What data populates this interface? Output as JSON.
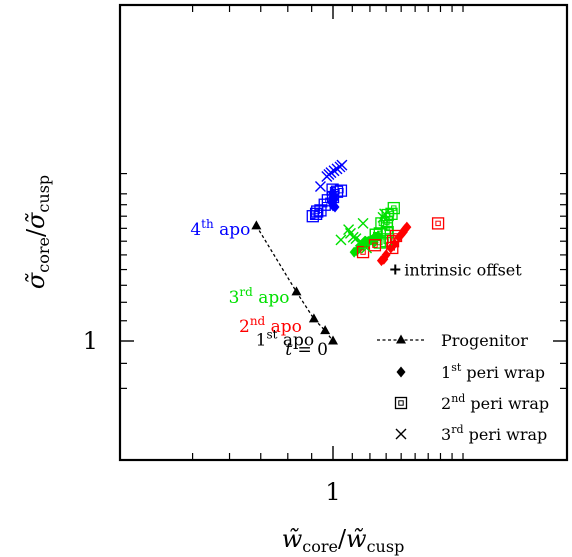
{
  "colors": {
    "progenitor": "#000000",
    "apo_1": "#000000",
    "apo_2": "#ff0000",
    "apo_3": "#00e000",
    "apo_4": "#0000ff",
    "peri_1": "#0000ff",
    "peri_2": "#ff0000",
    "peri_3": "#00e000",
    "axis": "#000000"
  },
  "chart_data": {
    "type": "scatter",
    "xscale": "log",
    "yscale": "log",
    "xlim": [
      0.5,
      1.9
    ],
    "ylim": [
      0.78,
      2.25
    ],
    "xlabel": "w̃core/w̃cusp",
    "ylabel": "σ̃core/σ̃cusp",
    "x_ticklabels": [
      {
        "value": 1,
        "label": "1"
      }
    ],
    "y_ticklabels": [
      {
        "value": 1,
        "label": "1"
      }
    ],
    "legend": {
      "placement": "bottom-right",
      "entries": [
        {
          "key": "progenitor",
          "label": "Progenitor"
        },
        {
          "key": "peri_1",
          "ord": "1",
          "sup": "st",
          "rest": " peri wrap"
        },
        {
          "key": "peri_2",
          "ord": "2",
          "sup": "nd",
          "rest": " peri wrap"
        },
        {
          "key": "peri_3",
          "ord": "3",
          "sup": "rd",
          "rest": " peri wrap"
        }
      ]
    },
    "progenitor": {
      "style": "dashed line with triangles",
      "points": [
        {
          "x": 0.685,
          "y": 1.72
        },
        {
          "x": 0.835,
          "y": 1.26
        },
        {
          "x": 0.91,
          "y": 1.11
        },
        {
          "x": 0.962,
          "y": 1.05
        },
        {
          "x": 1.0,
          "y": 1.0
        }
      ],
      "annotations": [
        {
          "key": "apo_4",
          "ord": "4",
          "sup": "th",
          "rest": " apo",
          "x": 0.685,
          "y": 1.72
        },
        {
          "key": "apo_3",
          "ord": "3",
          "sup": "rd",
          "rest": " apo",
          "x": 0.835,
          "y": 1.26
        },
        {
          "key": "apo_2",
          "ord": "2",
          "sup": "nd",
          "rest": " apo",
          "x": 0.91,
          "y": 1.11
        },
        {
          "key": "apo_1",
          "ord": "1",
          "sup": "st",
          "rest": " apo",
          "x": 0.962,
          "y": 1.05
        },
        {
          "key": "progenitor",
          "text": "t = 0",
          "x": 1.0,
          "y": 1.0
        }
      ]
    },
    "intrinsic_offset": {
      "x": 1.36,
      "y": 1.4,
      "label": "intrinsic offset"
    },
    "series": [
      {
        "key": "peri_1",
        "name": "1st peri wrap",
        "marker": "diamond",
        "group": "blue",
        "points": [
          [
            0.998,
            2.01
          ],
          [
            1.002,
            1.99
          ],
          [
            1.0,
            1.97
          ],
          [
            1.007,
            1.95
          ],
          [
            0.995,
            1.93
          ],
          [
            0.997,
            1.91
          ],
          [
            1.0,
            1.89
          ],
          [
            1.01,
            1.88
          ]
        ]
      },
      {
        "key": "peri_1",
        "name": "1st peri wrap",
        "marker": "diamond",
        "group": "green",
        "points": [
          [
            1.11,
            1.52
          ],
          [
            1.125,
            1.53
          ],
          [
            1.14,
            1.55
          ],
          [
            1.16,
            1.57
          ],
          [
            1.175,
            1.59
          ],
          [
            1.19,
            1.6
          ],
          [
            1.205,
            1.61
          ],
          [
            1.22,
            1.62
          ],
          [
            1.235,
            1.63
          ],
          [
            1.25,
            1.64
          ],
          [
            1.175,
            1.6
          ],
          [
            1.225,
            1.59
          ]
        ]
      },
      {
        "key": "peri_1",
        "name": "1st peri wrap",
        "marker": "diamond",
        "group": "red",
        "points": [
          [
            1.27,
            1.46
          ],
          [
            1.285,
            1.47
          ],
          [
            1.3,
            1.5
          ],
          [
            1.33,
            1.55
          ],
          [
            1.355,
            1.58
          ],
          [
            1.385,
            1.63
          ],
          [
            1.4,
            1.65
          ],
          [
            1.415,
            1.67
          ],
          [
            1.425,
            1.69
          ],
          [
            1.44,
            1.71
          ]
        ]
      },
      {
        "key": "peri_2",
        "name": "2nd peri wrap",
        "marker": "square",
        "group": "blue",
        "points": [
          [
            0.998,
            2.04
          ],
          [
            1.02,
            2.02
          ],
          [
            1.04,
            2.03
          ],
          [
            1.0,
            1.97
          ],
          [
            0.975,
            1.94
          ],
          [
            0.96,
            1.9
          ],
          [
            0.94,
            1.85
          ],
          [
            0.92,
            1.82
          ],
          [
            0.925,
            1.84
          ],
          [
            0.905,
            1.8
          ]
        ]
      },
      {
        "key": "peri_2",
        "name": "2nd peri wrap",
        "marker": "square",
        "group": "green",
        "points": [
          [
            1.35,
            1.87
          ],
          [
            1.335,
            1.82
          ],
          [
            1.31,
            1.81
          ],
          [
            1.305,
            1.75
          ],
          [
            1.27,
            1.74
          ],
          [
            1.305,
            1.7
          ],
          [
            1.26,
            1.66
          ],
          [
            1.235,
            1.65
          ],
          [
            1.31,
            1.67
          ],
          [
            1.235,
            1.65
          ],
          [
            1.3,
            1.6
          ],
          [
            1.26,
            1.59
          ]
        ]
      },
      {
        "key": "peri_2",
        "name": "2nd peri wrap",
        "marker": "square",
        "group": "red",
        "points": [
          [
            1.68,
            1.74
          ],
          [
            1.365,
            1.64
          ],
          [
            1.345,
            1.6
          ],
          [
            1.34,
            1.55
          ],
          [
            1.23,
            1.57
          ],
          [
            1.16,
            1.52
          ]
        ]
      },
      {
        "key": "peri_3",
        "name": "3rd peri wrap",
        "marker": "cross",
        "group": "blue",
        "points": [
          [
            1.045,
            2.29
          ],
          [
            1.035,
            2.27
          ],
          [
            1.02,
            2.25
          ],
          [
            1.005,
            2.23
          ],
          [
            0.99,
            2.21
          ],
          [
            0.98,
            2.19
          ],
          [
            0.97,
            2.17
          ],
          [
            0.94,
            2.07
          ]
        ]
      },
      {
        "key": "peri_3",
        "name": "3rd peri wrap",
        "marker": "cross",
        "group": "green",
        "points": [
          [
            1.29,
            1.82
          ],
          [
            1.28,
            1.79
          ],
          [
            1.16,
            1.74
          ],
          [
            1.08,
            1.69
          ],
          [
            1.09,
            1.66
          ],
          [
            1.105,
            1.63
          ],
          [
            1.12,
            1.62
          ],
          [
            1.04,
            1.61
          ],
          [
            1.145,
            1.6
          ],
          [
            1.18,
            1.55
          ]
        ]
      }
    ]
  }
}
